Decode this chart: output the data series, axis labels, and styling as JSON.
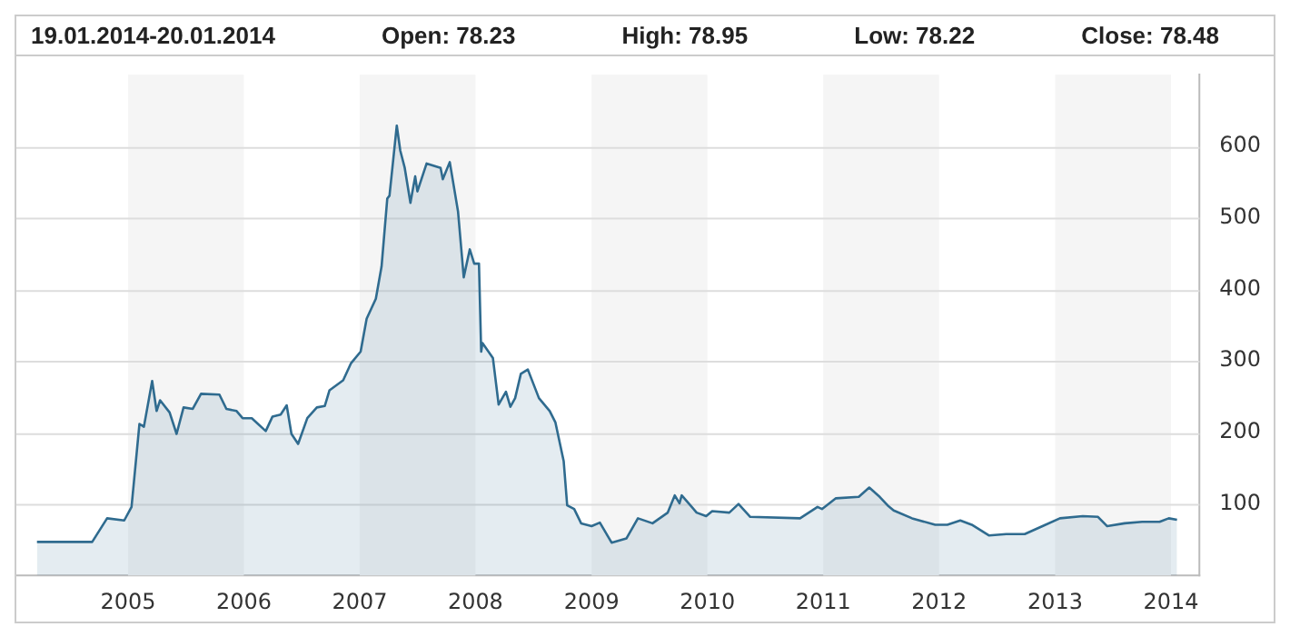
{
  "chart_data": {
    "type": "area",
    "annotations": [
      "19.01.2014-20.01.2014",
      "Open: 78.23",
      "High: 78.95",
      "Low: 78.22",
      "Close: 78.48"
    ],
    "x": [
      "2004-03-20",
      "2004-08-01",
      "2004-09-10",
      "2004-10-27",
      "2004-12-20",
      "2005-01-12",
      "2005-02-06",
      "2005-02-20",
      "2005-03-18",
      "2005-04-01",
      "2005-04-12",
      "2005-05-12",
      "2005-06-03",
      "2005-06-25",
      "2005-07-24",
      "2005-08-19",
      "2005-10-16",
      "2005-11-07",
      "2005-12-09",
      "2005-12-28",
      "2006-01-26",
      "2006-03-11",
      "2006-04-01",
      "2006-04-27",
      "2006-05-16",
      "2006-05-31",
      "2006-06-21",
      "2006-07-20",
      "2006-08-19",
      "2006-09-13",
      "2006-09-28",
      "2006-11-10",
      "2006-12-05",
      "2007-01-04",
      "2007-01-23",
      "2007-02-21",
      "2007-03-11",
      "2007-03-29",
      "2007-04-05",
      "2007-04-28",
      "2007-05-09",
      "2007-05-23",
      "2007-06-10",
      "2007-06-25",
      "2007-07-02",
      "2007-07-31",
      "2007-09-13",
      "2007-09-20",
      "2007-10-12",
      "2007-11-07",
      "2007-11-25",
      "2007-12-14",
      "2007-12-28",
      "2008-01-12",
      "2008-01-19",
      "2008-01-23",
      "2008-02-25",
      "2008-03-14",
      "2008-04-06",
      "2008-04-20",
      "2008-05-05",
      "2008-05-23",
      "2008-06-14",
      "2008-07-19",
      "2008-08-22",
      "2008-09-09",
      "2008-10-05",
      "2008-10-16",
      "2008-11-07",
      "2008-11-29",
      "2009-01-01",
      "2009-01-27",
      "2009-03-05",
      "2009-04-21",
      "2009-05-27",
      "2009-07-12",
      "2009-08-29",
      "2009-09-20",
      "2009-10-05",
      "2009-10-12",
      "2009-11-28",
      "2009-12-28",
      "2010-01-16",
      "2010-03-11",
      "2010-04-09",
      "2010-05-16",
      "2010-10-20",
      "2010-12-14",
      "2010-12-28",
      "2011-02-10",
      "2011-04-23",
      "2011-05-26",
      "2011-06-28",
      "2011-07-23",
      "2011-08-11",
      "2011-10-08",
      "2011-12-20",
      "2012-01-27",
      "2012-03-08",
      "2012-04-13",
      "2012-06-07",
      "2012-07-31",
      "2012-09-27",
      "2012-11-22",
      "2013-01-16",
      "2013-03-29",
      "2013-05-16",
      "2013-06-14",
      "2013-08-08",
      "2013-10-02",
      "2013-11-26",
      "2013-12-25",
      "2014-01-20"
    ],
    "series": [
      {
        "color": "#2f6b8f",
        "values": [
          47,
          47,
          47,
          80,
          77,
          96,
          212,
          208,
          272,
          230,
          245,
          228,
          198,
          235,
          233,
          254,
          253,
          233,
          230,
          220,
          220,
          202,
          222,
          225,
          238,
          198,
          184,
          220,
          235,
          237,
          259,
          273,
          297,
          313,
          359,
          387,
          432,
          527,
          531,
          629,
          594,
          570,
          521,
          558,
          537,
          576,
          570,
          554,
          578,
          509,
          417,
          456,
          436,
          436,
          313,
          325,
          304,
          239,
          257,
          236,
          248,
          282,
          288,
          248,
          230,
          214,
          160,
          98,
          93,
          73,
          69,
          74,
          46,
          52,
          80,
          73,
          88,
          112,
          101,
          112,
          88,
          83,
          90,
          88,
          100,
          82,
          80,
          96,
          93,
          108,
          110,
          123,
          110,
          98,
          91,
          80,
          71,
          71,
          77,
          71,
          56,
          58,
          58,
          69,
          80,
          83,
          82,
          69,
          73,
          75,
          75,
          80,
          78
        ]
      }
    ],
    "xlim": [
      "2004-01-15",
      "2014-04-01"
    ],
    "xticks": [
      "2005",
      "2006",
      "2007",
      "2008",
      "2009",
      "2010",
      "2011",
      "2012",
      "2013",
      "2014"
    ],
    "ylim": [
      0,
      700
    ],
    "yticks": [
      100,
      200,
      300,
      400,
      500,
      600
    ],
    "grid": "y",
    "bands": [
      {
        "axis": "x",
        "from": "2005",
        "to": "2006",
        "color": "#f5f5f5"
      },
      {
        "axis": "x",
        "from": "2007",
        "to": "2008",
        "color": "#f5f5f5"
      },
      {
        "axis": "x",
        "from": "2009",
        "to": "2010",
        "color": "#f5f5f5"
      },
      {
        "axis": "x",
        "from": "2011",
        "to": "2012",
        "color": "#f5f5f5"
      },
      {
        "axis": "x",
        "from": "2013",
        "to": "2014",
        "color": "#f5f5f5"
      }
    ]
  }
}
